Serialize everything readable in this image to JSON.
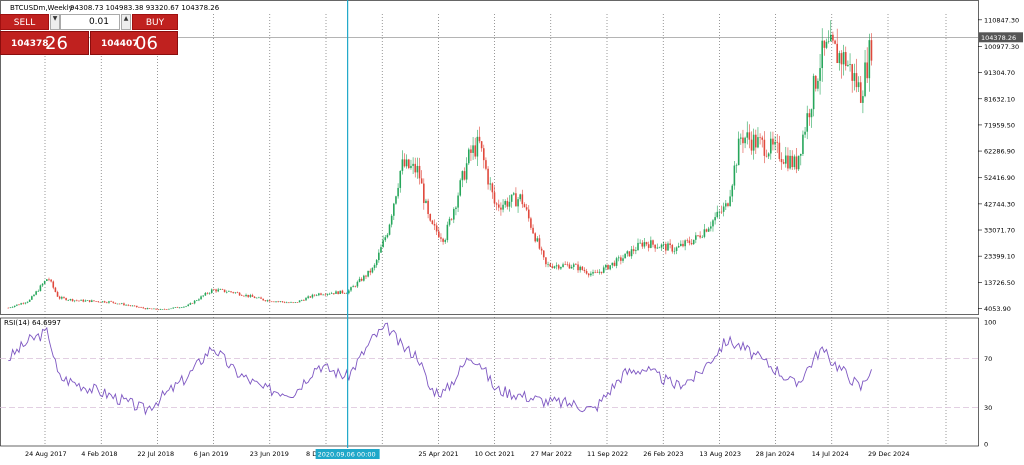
{
  "header": {
    "symbol": "BTCUSDm,Weekly",
    "ohlc": "94308.73 104983.38 93320.67 104378.26"
  },
  "trade_panel": {
    "sell_label": "SELL",
    "buy_label": "BUY",
    "lot_value": "0.01",
    "sell_price_small": "104378",
    "sell_price_big": "26",
    "buy_price_small": "104407",
    "buy_price_big": "06",
    "colors": {
      "button": "#c0211f",
      "text": "#ffffff"
    }
  },
  "indicator": {
    "label": "RSI(14) 64.6997"
  },
  "current_price_label": "104378.26",
  "crosshair_label": "2020.09.06 00:00",
  "colors": {
    "bull_candle": "#26a65b",
    "bear_candle": "#e0483c",
    "rsi_line": "#7e57c2",
    "crosshair": "#1fa8c9",
    "grid": "#555555",
    "level_line": "#d8bfd8"
  },
  "chart_data": [
    {
      "type": "candlestick",
      "title": "",
      "y_ticks": [
        "110847.30",
        "100977.30",
        "91304.70",
        "81632.10",
        "71959.50",
        "62286.90",
        "52416.90",
        "42744.30",
        "33071.70",
        "23399.10",
        "13726.50",
        "4053.90"
      ],
      "x_ticks": [
        "24 Aug 2017",
        "4 Feb 2018",
        "22 Jul 2018",
        "6 Jan 2019",
        "23 Jun 2019",
        "8 Dec 2019",
        "",
        "25 Apr 2021",
        "10 Oct 2021",
        "27 Mar 2022",
        "11 Sep 2022",
        "26 Feb 2023",
        "13 Aug 2023",
        "28 Jan 2024",
        "14 Jul 2024",
        "29 Dec 2024"
      ],
      "ylim": [
        2000,
        113000
      ],
      "current_price": 104378.26,
      "x": [
        "2017-08-24",
        "2017-11-01",
        "2018-01-01",
        "2018-02-04",
        "2018-04-01",
        "2018-07-22",
        "2018-11-15",
        "2019-01-06",
        "2019-04-01",
        "2019-06-23",
        "2019-09-01",
        "2019-12-08",
        "2020-03-15",
        "2020-06-01",
        "2020-09-06",
        "2020-12-01",
        "2021-01-15",
        "2021-03-01",
        "2021-04-25",
        "2021-06-01",
        "2021-07-20",
        "2021-10-10",
        "2021-11-10",
        "2022-01-01",
        "2022-03-27",
        "2022-06-15",
        "2022-09-11",
        "2022-11-20",
        "2023-02-26",
        "2023-05-01",
        "2023-08-13",
        "2023-10-20",
        "2024-01-28",
        "2024-03-15",
        "2024-07-14",
        "2024-09-10",
        "2024-12-01",
        "2024-12-29",
        "2025-02-20",
        "2025-04-10",
        "2025-05-20"
      ],
      "close": [
        4300,
        7000,
        15500,
        8000,
        7000,
        6500,
        4000,
        3600,
        5000,
        11000,
        10000,
        7200,
        6000,
        9500,
        10200,
        19000,
        33000,
        57000,
        55000,
        35000,
        30000,
        61000,
        65000,
        42000,
        45000,
        20000,
        20000,
        16500,
        23000,
        28500,
        26000,
        30000,
        42000,
        68000,
        62000,
        57000,
        97000,
        100000,
        96000,
        84000,
        104378
      ]
    },
    {
      "type": "line",
      "title": "RSI(14) 64.6997",
      "y_ticks": [
        "100",
        "70",
        "30",
        "0"
      ],
      "ylim": [
        0,
        100
      ],
      "levels": [
        70,
        30
      ],
      "x": [
        "2017-08-24",
        "2017-11-01",
        "2018-01-01",
        "2018-02-04",
        "2018-04-01",
        "2018-07-22",
        "2018-11-15",
        "2019-01-06",
        "2019-04-01",
        "2019-06-23",
        "2019-09-01",
        "2019-12-08",
        "2020-03-15",
        "2020-06-01",
        "2020-09-06",
        "2020-12-01",
        "2021-01-15",
        "2021-03-01",
        "2021-04-25",
        "2021-06-01",
        "2021-07-20",
        "2021-10-10",
        "2021-11-10",
        "2022-01-01",
        "2022-03-27",
        "2022-06-15",
        "2022-09-11",
        "2022-11-20",
        "2023-02-26",
        "2023-05-01",
        "2023-08-13",
        "2023-10-20",
        "2024-01-28",
        "2024-03-15",
        "2024-07-14",
        "2024-09-10",
        "2024-12-01",
        "2024-12-29",
        "2025-02-20",
        "2025-04-10",
        "2025-05-20"
      ],
      "values": [
        70,
        85,
        92,
        55,
        50,
        40,
        28,
        38,
        55,
        80,
        60,
        45,
        42,
        65,
        55,
        88,
        96,
        80,
        72,
        45,
        42,
        72,
        68,
        45,
        40,
        35,
        33,
        28,
        58,
        62,
        48,
        55,
        85,
        80,
        60,
        48,
        78,
        70,
        58,
        46,
        65
      ]
    }
  ]
}
